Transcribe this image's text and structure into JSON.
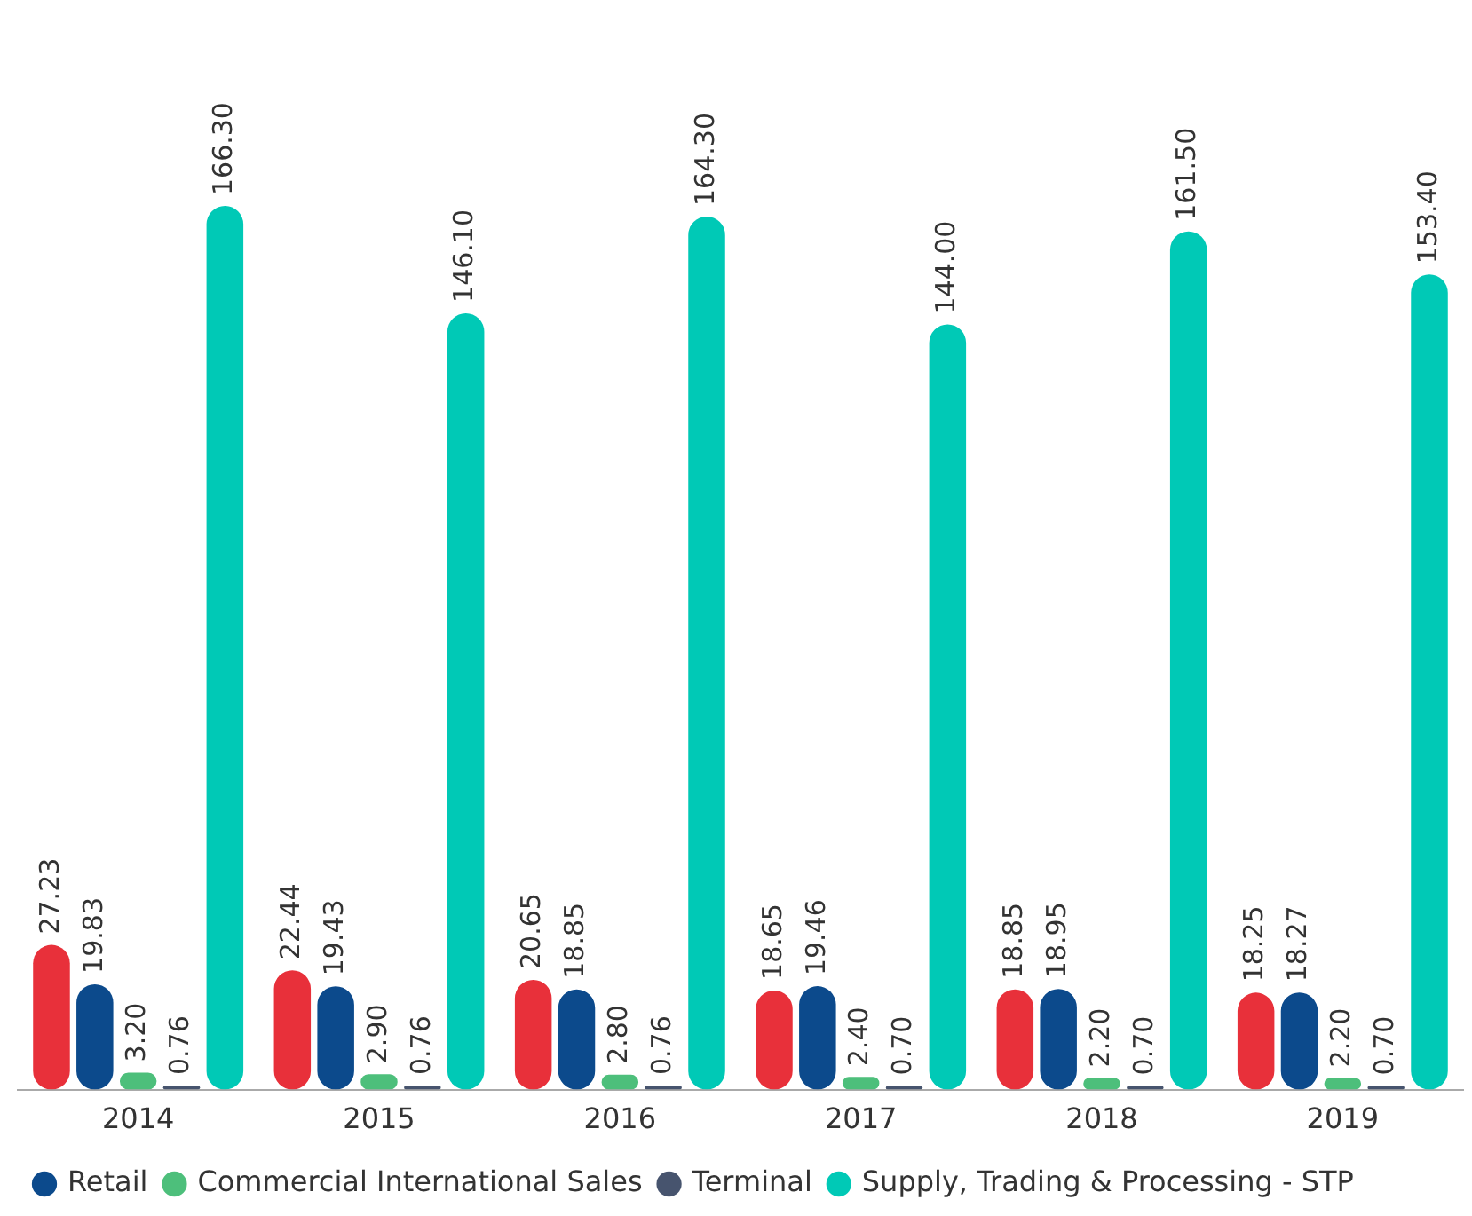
{
  "chart_data": {
    "type": "bar",
    "categories": [
      "2014",
      "2015",
      "2016",
      "2017",
      "2018",
      "2019"
    ],
    "series": [
      {
        "color": "#e8303a",
        "values": [
          27.23,
          22.44,
          20.65,
          18.65,
          18.85,
          18.25
        ],
        "value_labels": [
          "27.23",
          "22.44",
          "20.65",
          "18.65",
          "18.85",
          "18.25"
        ]
      },
      {
        "name": "Retail",
        "color": "#0c4a8c",
        "values": [
          19.83,
          19.43,
          18.85,
          19.46,
          18.95,
          18.27
        ],
        "value_labels": [
          "19.83",
          "19.43",
          "18.85",
          "19.46",
          "18.95",
          "18.27"
        ]
      },
      {
        "name": "Commercial International Sales",
        "color": "#4dbf7b",
        "values": [
          3.2,
          2.9,
          2.8,
          2.4,
          2.2,
          2.2
        ],
        "value_labels": [
          "3.20",
          "2.90",
          "2.80",
          "2.40",
          "2.20",
          "2.20"
        ]
      },
      {
        "name": "Terminal",
        "color": "#47546e",
        "values": [
          0.76,
          0.76,
          0.76,
          0.7,
          0.7,
          0.7
        ],
        "value_labels": [
          "0.76",
          "0.76",
          "0.76",
          "0.70",
          "0.70",
          "0.70"
        ]
      },
      {
        "name": "Supply, Trading & Processing - STP",
        "color": "#00c9b6",
        "values": [
          166.3,
          146.1,
          164.3,
          144.0,
          161.5,
          153.4
        ],
        "value_labels": [
          "166.30",
          "146.10",
          "164.30",
          "144.00",
          "161.50",
          "153.40"
        ]
      }
    ],
    "legend": "bottom",
    "grid": false
  }
}
